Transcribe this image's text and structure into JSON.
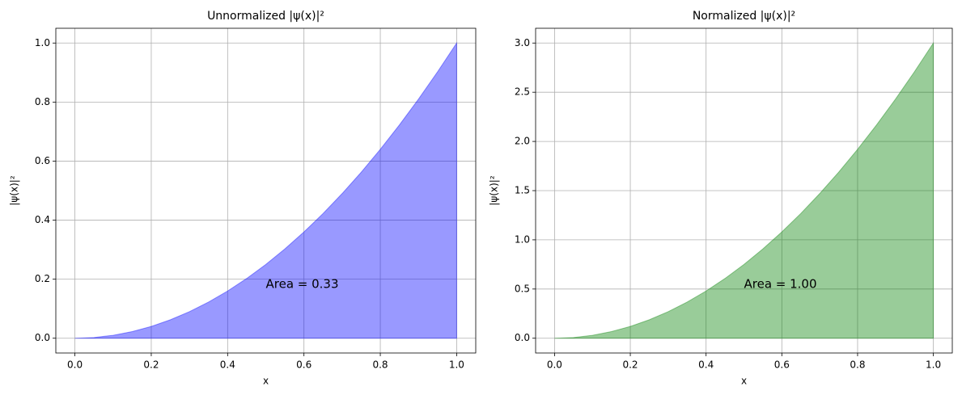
{
  "chart_data": [
    {
      "type": "area",
      "title": "Unnormalized |ψ(x)|²",
      "xlabel": "x",
      "ylabel": "|ψ(x)|²",
      "x": [
        0,
        0.05,
        0.1,
        0.15,
        0.2,
        0.25,
        0.3,
        0.35,
        0.4,
        0.45,
        0.5,
        0.55,
        0.6,
        0.65,
        0.7,
        0.75,
        0.8,
        0.85,
        0.9,
        0.95,
        1
      ],
      "values": [
        0,
        0.0025,
        0.01,
        0.0225,
        0.04,
        0.0625,
        0.09,
        0.1225,
        0.16,
        0.2025,
        0.25,
        0.3025,
        0.36,
        0.4225,
        0.49,
        0.5625,
        0.64,
        0.7225,
        0.81,
        0.9025,
        1
      ],
      "color": "#0000ff",
      "annotation": "Area = 0.33",
      "xlim": [
        -0.05,
        1.05
      ],
      "ylim": [
        -0.05,
        1.05
      ],
      "xticks": [
        {
          "value": 0,
          "label": "0.0"
        },
        0.2,
        0.4,
        0.6,
        0.8,
        {
          "value": 1,
          "label": "1.0"
        }
      ],
      "yticks": [
        {
          "value": 0,
          "label": "0.0"
        },
        0.2,
        0.4,
        0.6,
        0.8,
        {
          "value": 1,
          "label": "1.0"
        }
      ],
      "grid": true
    },
    {
      "type": "area",
      "title": "Normalized |ψ(x)|²",
      "xlabel": "x",
      "ylabel": "|ψ(x)|²",
      "x": [
        0,
        0.05,
        0.1,
        0.15,
        0.2,
        0.25,
        0.3,
        0.35,
        0.4,
        0.45,
        0.5,
        0.55,
        0.6,
        0.65,
        0.7,
        0.75,
        0.8,
        0.85,
        0.9,
        0.95,
        1
      ],
      "values": [
        0,
        0.0075,
        0.03,
        0.0675,
        0.12,
        0.1875,
        0.27,
        0.3675,
        0.48,
        0.6075,
        0.75,
        0.9075,
        1.08,
        1.2675,
        1.47,
        1.6875,
        1.92,
        2.1675,
        2.43,
        2.7075,
        3
      ],
      "color": "#008000",
      "annotation": "Area = 1.00",
      "xlim": [
        -0.05,
        1.05
      ],
      "ylim": [
        -0.15,
        3.15
      ],
      "xticks": [
        {
          "value": 0,
          "label": "0.0"
        },
        0.2,
        0.4,
        0.6,
        0.8,
        {
          "value": 1,
          "label": "1.0"
        }
      ],
      "yticks": [
        {
          "value": 0,
          "label": "0.0"
        },
        0.5,
        {
          "value": 1,
          "label": "1.0"
        },
        1.5,
        {
          "value": 2,
          "label": "2.0"
        },
        2.5,
        {
          "value": 3,
          "label": "3.0"
        }
      ],
      "grid": true
    }
  ]
}
